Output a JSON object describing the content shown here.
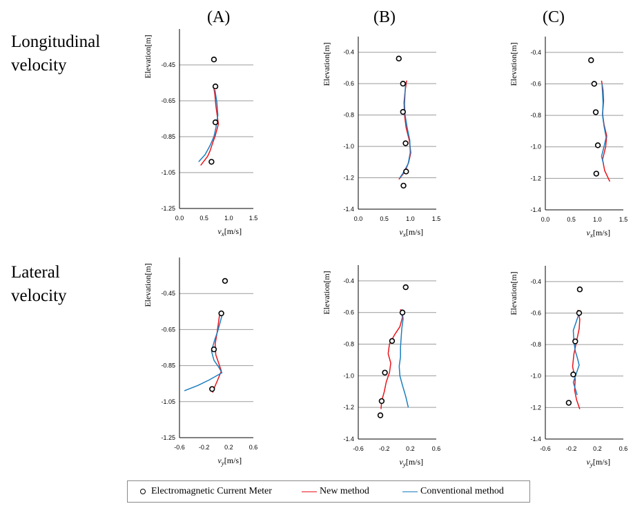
{
  "columns": [
    "(A)",
    "(B)",
    "(C)"
  ],
  "rows": [
    [
      "Longitudinal",
      "velocity"
    ],
    [
      "Lateral",
      "velocity"
    ]
  ],
  "legend": [
    {
      "label": "Electromagnetic Current Meter",
      "kind": "circle",
      "color": "#000000"
    },
    {
      "label": "New method",
      "kind": "line",
      "color": "#e8141b"
    },
    {
      "label": "Conventional method",
      "kind": "line",
      "color": "#1a7dbf"
    }
  ],
  "chart_data": [
    {
      "panel": "A-longitudinal",
      "type": "scatter",
      "ylabel": "Elevation[m]",
      "xlabel_main": "v",
      "xlabel_sub": "x",
      "xlabel_unit": "[m/s]",
      "xlim": [
        0,
        1.5
      ],
      "ylim": [
        -1.25,
        -0.25
      ],
      "xticks": [
        "0.0",
        "0.5",
        "1.0",
        "1.5"
      ],
      "xtick_values": [
        0,
        0.5,
        1.0,
        1.5
      ],
      "yticks": [
        "-0.45",
        "-0.65",
        "-0.85",
        "-1.05",
        "-1.25"
      ],
      "ytick_values": [
        -0.45,
        -0.65,
        -0.85,
        -1.05,
        -1.25
      ],
      "grid": true,
      "series": [
        {
          "kind": "points",
          "color": "#000000",
          "x": [
            0.7,
            0.73,
            0.73,
            0.65
          ],
          "y": [
            -0.42,
            -0.57,
            -0.77,
            -0.99
          ]
        },
        {
          "kind": "line",
          "color": "#e8141b",
          "x": [
            0.7,
            0.72,
            0.74,
            0.79,
            0.72,
            0.68,
            0.62,
            0.57,
            0.43
          ],
          "y": [
            -0.58,
            -0.62,
            -0.68,
            -0.78,
            -0.85,
            -0.88,
            -0.93,
            -0.96,
            -1.01
          ]
        },
        {
          "kind": "line",
          "color": "#1a7dbf",
          "x": [
            0.72,
            0.76,
            0.78,
            0.74,
            0.7,
            0.62,
            0.52,
            0.39
          ],
          "y": [
            -0.59,
            -0.66,
            -0.73,
            -0.8,
            -0.85,
            -0.9,
            -0.95,
            -0.99
          ]
        }
      ]
    },
    {
      "panel": "B-longitudinal",
      "type": "scatter",
      "ylabel": "Elevation[m]",
      "xlabel_main": "v",
      "xlabel_sub": "x",
      "xlabel_unit": "[m/s]",
      "xlim": [
        0,
        1.5
      ],
      "ylim": [
        -1.4,
        -0.3
      ],
      "xticks": [
        "0.0",
        "0.5",
        "1.0",
        "1.5"
      ],
      "xtick_values": [
        0,
        0.5,
        1.0,
        1.5
      ],
      "yticks": [
        "-0.4",
        "-0.6",
        "-0.8",
        "-1.0",
        "-1.2",
        "-1.4"
      ],
      "ytick_values": [
        -0.4,
        -0.6,
        -0.8,
        -1.0,
        -1.2,
        -1.4
      ],
      "grid": true,
      "series": [
        {
          "kind": "points",
          "color": "#000000",
          "x": [
            0.78,
            0.86,
            0.86,
            0.91,
            0.92,
            0.87
          ],
          "y": [
            -0.44,
            -0.6,
            -0.78,
            -0.98,
            -1.16,
            -1.25
          ]
        },
        {
          "kind": "line",
          "color": "#e8141b",
          "x": [
            0.93,
            0.9,
            0.88,
            0.89,
            0.92,
            0.98,
            1.01,
            0.97,
            0.9,
            0.78
          ],
          "y": [
            -0.58,
            -0.65,
            -0.72,
            -0.8,
            -0.88,
            -0.96,
            -1.04,
            -1.1,
            -1.16,
            -1.21
          ]
        },
        {
          "kind": "line",
          "color": "#1a7dbf",
          "x": [
            0.91,
            0.9,
            0.89,
            0.9,
            0.94,
            0.99,
            1.0,
            0.96,
            0.88,
            0.8
          ],
          "y": [
            -0.59,
            -0.66,
            -0.73,
            -0.8,
            -0.88,
            -0.96,
            -1.04,
            -1.11,
            -1.16,
            -1.2
          ]
        }
      ]
    },
    {
      "panel": "C-longitudinal",
      "type": "scatter",
      "ylabel": "Elevation[m]",
      "xlabel_main": "v",
      "xlabel_sub": "x",
      "xlabel_unit": "[m/s]",
      "xlim": [
        0,
        1.5
      ],
      "ylim": [
        -1.4,
        -0.3
      ],
      "xticks": [
        "0.0",
        "0.5",
        "1.0",
        "1.5"
      ],
      "xtick_values": [
        0,
        0.5,
        1.0,
        1.5
      ],
      "yticks": [
        "-0.4",
        "-0.6",
        "-0.8",
        "-1.0",
        "-1.2",
        "-1.4"
      ],
      "ytick_values": [
        -0.4,
        -0.6,
        -0.8,
        -1.0,
        -1.2,
        -1.4
      ],
      "grid": true,
      "series": [
        {
          "kind": "points",
          "color": "#000000",
          "x": [
            0.88,
            0.94,
            0.97,
            1.01,
            0.98
          ],
          "y": [
            -0.45,
            -0.6,
            -0.78,
            -0.99,
            -1.17
          ]
        },
        {
          "kind": "line",
          "color": "#e8141b",
          "x": [
            1.08,
            1.11,
            1.12,
            1.1,
            1.13,
            1.18,
            1.16,
            1.1,
            1.14,
            1.24
          ],
          "y": [
            -0.58,
            -0.64,
            -0.71,
            -0.79,
            -0.86,
            -0.93,
            -1.0,
            -1.08,
            -1.15,
            -1.22
          ]
        },
        {
          "kind": "line",
          "color": "#1a7dbf",
          "x": [
            1.09,
            1.1,
            1.11,
            1.1,
            1.13,
            1.17,
            1.12,
            1.08,
            1.12
          ],
          "y": [
            -0.6,
            -0.66,
            -0.72,
            -0.8,
            -0.87,
            -0.94,
            -1.01,
            -1.06,
            -1.11
          ]
        }
      ]
    },
    {
      "panel": "A-lateral",
      "type": "scatter",
      "ylabel": "Elevation[m]",
      "xlabel_main": "v",
      "xlabel_sub": "y",
      "xlabel_unit": "[m/s]",
      "xlim": [
        -0.6,
        0.6
      ],
      "ylim": [
        -1.25,
        -0.25
      ],
      "xticks": [
        "-0.6",
        "-0.2",
        "0.2",
        "0.6"
      ],
      "xtick_values": [
        -0.6,
        -0.2,
        0.2,
        0.6
      ],
      "yticks": [
        "-0.45",
        "-0.65",
        "-0.85",
        "-1.05",
        "-1.25"
      ],
      "ytick_values": [
        -0.45,
        -0.65,
        -0.85,
        -1.05,
        -1.25
      ],
      "grid": true,
      "series": [
        {
          "kind": "points",
          "color": "#000000",
          "x": [
            0.14,
            0.08,
            -0.04,
            -0.07
          ],
          "y": [
            -0.38,
            -0.56,
            -0.76,
            -0.98
          ]
        },
        {
          "kind": "line",
          "color": "#e8141b",
          "x": [
            0.05,
            0.03,
            0.01,
            -0.02,
            -0.01,
            0.04,
            0.08,
            0.02,
            -0.03,
            -0.06
          ],
          "y": [
            -0.57,
            -0.62,
            -0.67,
            -0.73,
            -0.79,
            -0.84,
            -0.88,
            -0.93,
            -0.97,
            -1.0
          ]
        },
        {
          "kind": "line",
          "color": "#1a7dbf",
          "x": [
            0.1,
            0.06,
            0.02,
            -0.03,
            -0.08,
            -0.04,
            0.04,
            0.09,
            -0.12,
            -0.3,
            -0.52
          ],
          "y": [
            -0.56,
            -0.61,
            -0.66,
            -0.71,
            -0.77,
            -0.82,
            -0.86,
            -0.89,
            -0.93,
            -0.96,
            -0.99
          ]
        }
      ]
    },
    {
      "panel": "B-lateral",
      "type": "scatter",
      "ylabel": "Elevation[m]",
      "xlabel_main": "v",
      "xlabel_sub": "y",
      "xlabel_unit": "[m/s]",
      "xlim": [
        -0.6,
        0.6
      ],
      "ylim": [
        -1.4,
        -0.3
      ],
      "xticks": [
        "-0.6",
        "-0.2",
        "0.2",
        "0.6"
      ],
      "xtick_values": [
        -0.6,
        -0.2,
        0.2,
        0.6
      ],
      "yticks": [
        "-0.4",
        "-0.6",
        "-0.8",
        "-1.0",
        "-1.2",
        "-1.4"
      ],
      "ytick_values": [
        -0.4,
        -0.6,
        -0.8,
        -1.0,
        -1.2,
        -1.4
      ],
      "grid": true,
      "series": [
        {
          "kind": "points",
          "color": "#000000",
          "x": [
            0.13,
            0.08,
            -0.08,
            -0.19,
            -0.24,
            -0.26
          ],
          "y": [
            -0.44,
            -0.6,
            -0.78,
            -0.98,
            -1.16,
            -1.25
          ]
        },
        {
          "kind": "line",
          "color": "#e8141b",
          "x": [
            0.05,
            0.08,
            0.04,
            -0.04,
            -0.12,
            -0.14,
            -0.1,
            -0.12,
            -0.17,
            -0.2,
            -0.24,
            -0.25
          ],
          "y": [
            -0.58,
            -0.63,
            -0.69,
            -0.74,
            -0.8,
            -0.86,
            -0.92,
            -0.98,
            -1.04,
            -1.1,
            -1.16,
            -1.21
          ]
        },
        {
          "kind": "line",
          "color": "#1a7dbf",
          "x": [
            0.07,
            0.09,
            0.07,
            0.06,
            0.05,
            0.05,
            0.03,
            0.04,
            0.08,
            0.13,
            0.17
          ],
          "y": [
            -0.58,
            -0.64,
            -0.7,
            -0.76,
            -0.82,
            -0.88,
            -0.94,
            -1.0,
            -1.06,
            -1.13,
            -1.2
          ]
        }
      ]
    },
    {
      "panel": "C-lateral",
      "type": "scatter",
      "ylabel": "Elevation[m]",
      "xlabel_main": "v",
      "xlabel_sub": "y",
      "xlabel_unit": "[m/s]",
      "xlim": [
        -0.6,
        0.6
      ],
      "ylim": [
        -1.4,
        -0.3
      ],
      "xticks": [
        "-0.6",
        "-0.2",
        "0.2",
        "0.6"
      ],
      "xtick_values": [
        -0.6,
        -0.2,
        0.2,
        0.6
      ],
      "yticks": [
        "-0.4",
        "-0.6",
        "-0.8",
        "-1.0",
        "-1.2",
        "-1.4"
      ],
      "ytick_values": [
        -0.4,
        -0.6,
        -0.8,
        -1.0,
        -1.2,
        -1.4
      ],
      "grid": true,
      "series": [
        {
          "kind": "points",
          "color": "#000000",
          "x": [
            -0.07,
            -0.08,
            -0.14,
            -0.17,
            -0.24
          ],
          "y": [
            -0.45,
            -0.6,
            -0.78,
            -0.99,
            -1.17
          ]
        },
        {
          "kind": "line",
          "color": "#e8141b",
          "x": [
            -0.1,
            -0.07,
            -0.08,
            -0.12,
            -0.16,
            -0.18,
            -0.14,
            -0.15,
            -0.12,
            -0.07
          ],
          "y": [
            -0.58,
            -0.64,
            -0.7,
            -0.78,
            -0.86,
            -0.94,
            -1.02,
            -1.09,
            -1.15,
            -1.21
          ]
        },
        {
          "kind": "line",
          "color": "#1a7dbf",
          "x": [
            -0.08,
            -0.12,
            -0.17,
            -0.16,
            -0.14,
            -0.11,
            -0.08,
            -0.12,
            -0.17,
            -0.14,
            -0.11
          ],
          "y": [
            -0.6,
            -0.65,
            -0.71,
            -0.78,
            -0.84,
            -0.88,
            -0.93,
            -0.98,
            -1.04,
            -1.08,
            -1.12
          ]
        }
      ]
    }
  ]
}
